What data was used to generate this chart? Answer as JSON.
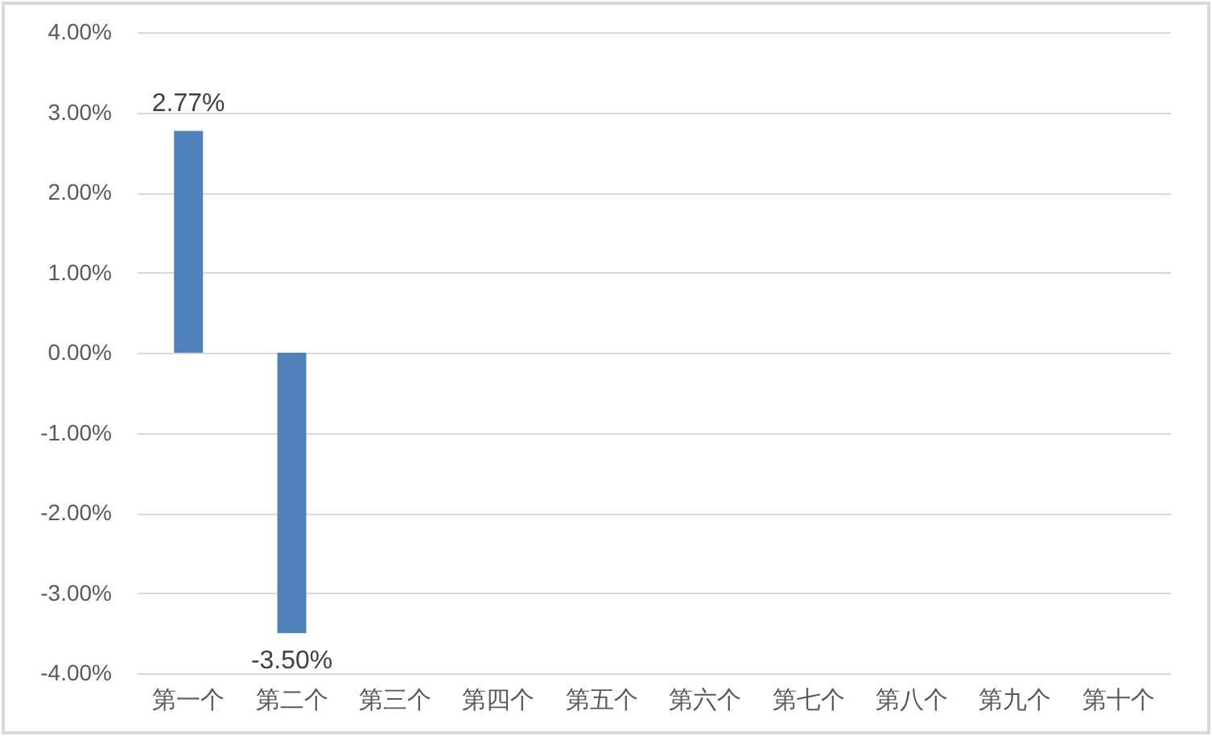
{
  "chart_data": {
    "type": "bar",
    "categories": [
      "第一个",
      "第二个",
      "第三个",
      "第四个",
      "第五个",
      "第六个",
      "第七个",
      "第八个",
      "第九个",
      "第十个"
    ],
    "values": [
      2.77,
      -3.5,
      null,
      null,
      null,
      null,
      null,
      null,
      null,
      null
    ],
    "value_labels": [
      "2.77%",
      "-3.50%",
      null,
      null,
      null,
      null,
      null,
      null,
      null,
      null
    ],
    "color": "#4f81bd",
    "ylim": [
      -4,
      4
    ],
    "yticks": [
      {
        "value": -4,
        "label": "-4.00%"
      },
      {
        "value": -3,
        "label": "-3.00%"
      },
      {
        "value": -2,
        "label": "-2.00%"
      },
      {
        "value": -1,
        "label": "-1.00%"
      },
      {
        "value": 0,
        "label": "0.00%"
      },
      {
        "value": 1,
        "label": "1.00%"
      },
      {
        "value": 2,
        "label": "2.00%"
      },
      {
        "value": 3,
        "label": "3.00%"
      },
      {
        "value": 4,
        "label": "4.00%"
      }
    ],
    "grid": "y"
  }
}
